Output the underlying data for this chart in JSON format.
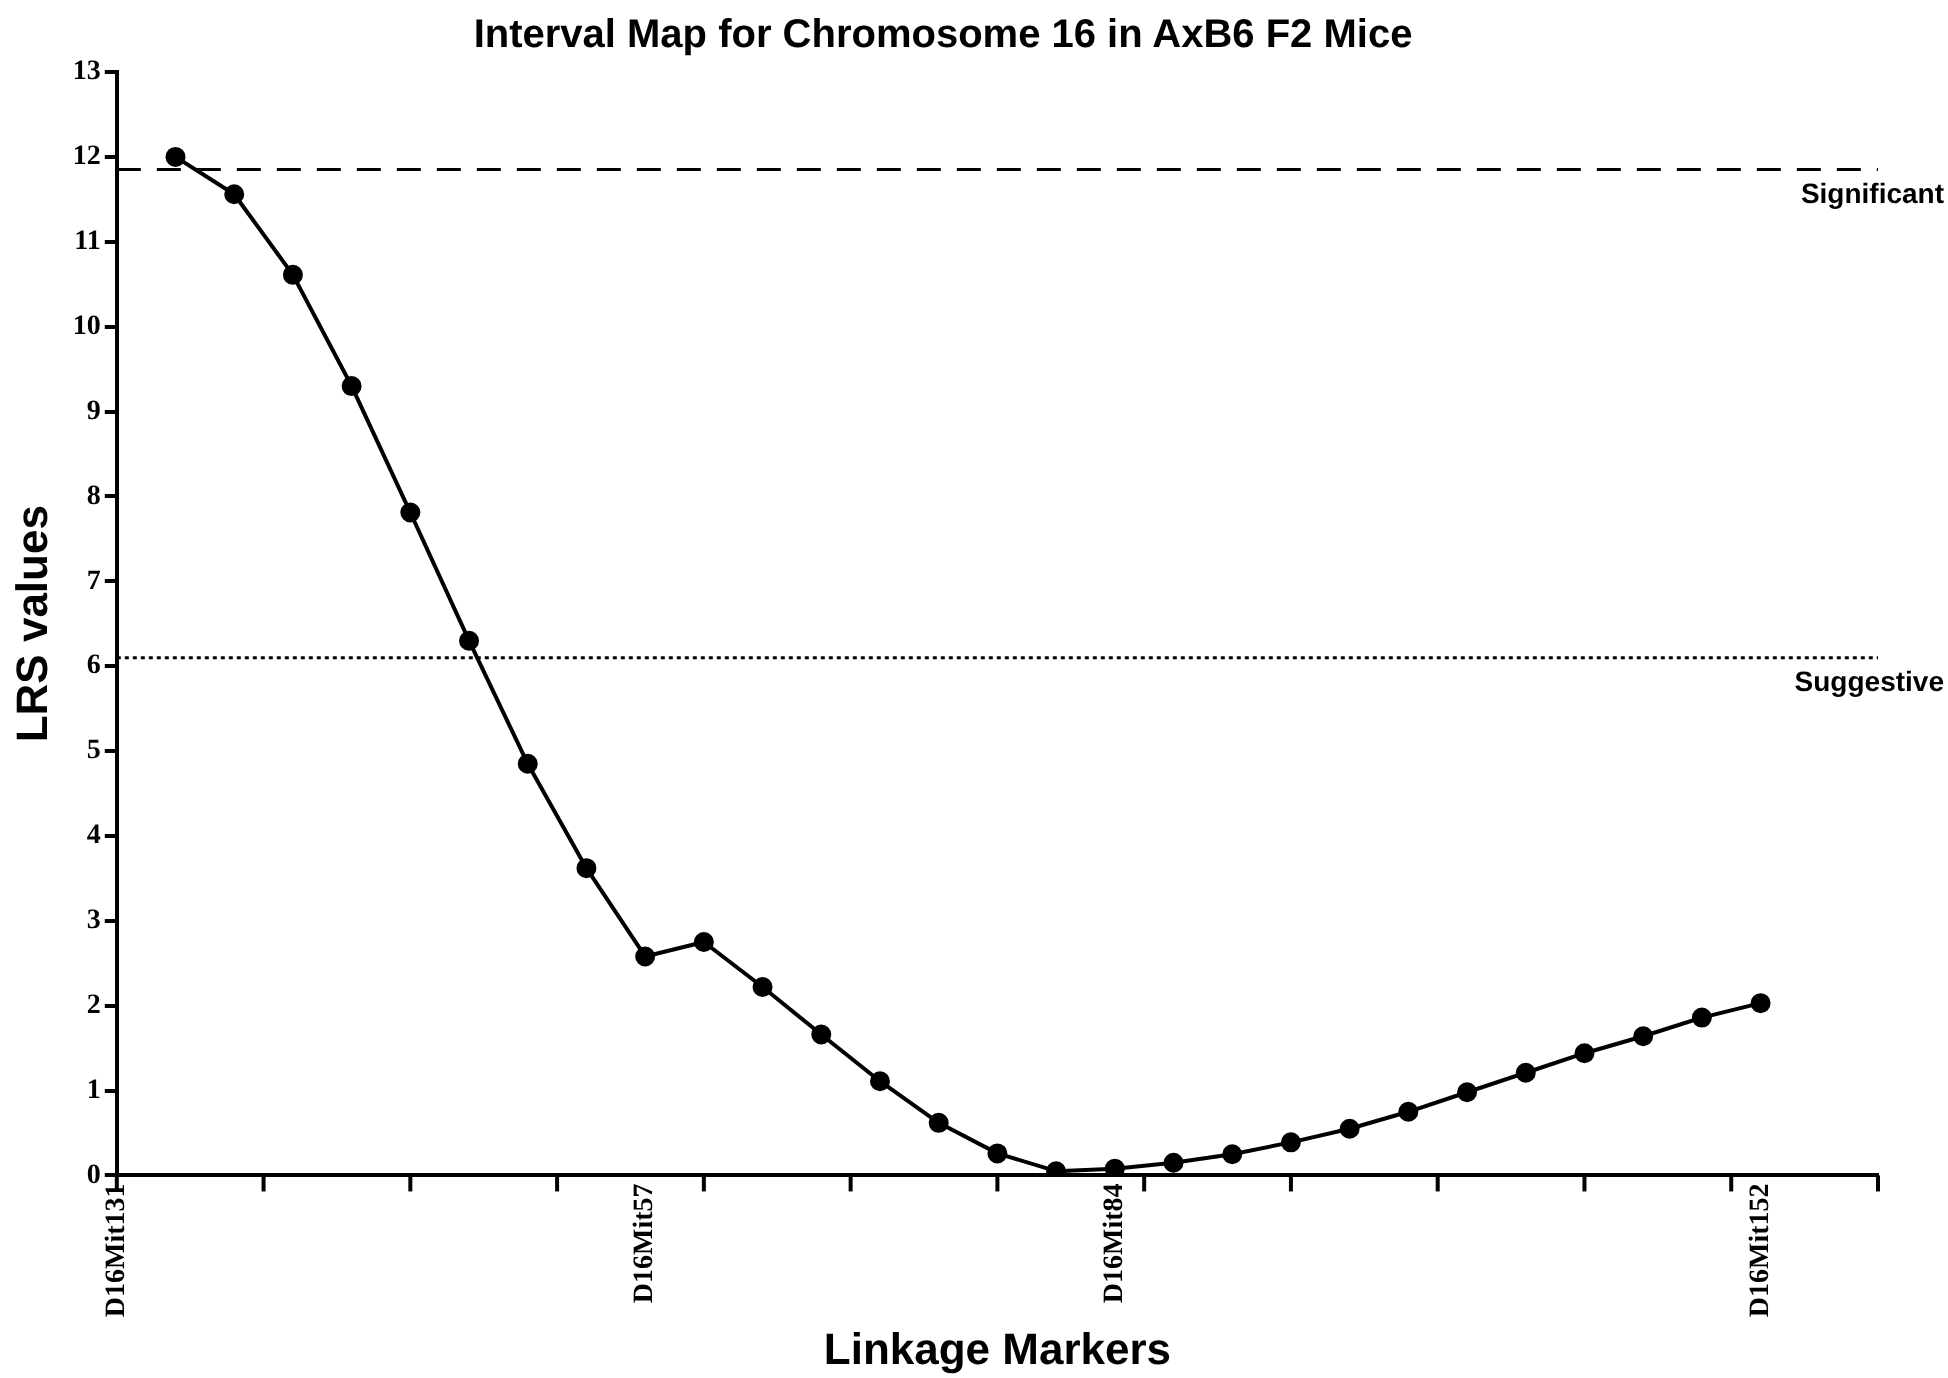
{
  "chart_data": {
    "type": "line",
    "title": "Interval Map for Chromosome 16 in AxB6 F2 Mice",
    "xlabel": "Linkage Markers",
    "ylabel": "LRS values",
    "categories": [
      "D16Mit131",
      null,
      null,
      null,
      null,
      null,
      null,
      null,
      null,
      "D16Mit57",
      null,
      null,
      null,
      null,
      null,
      null,
      null,
      "D16Mit84",
      null,
      null,
      null,
      null,
      null,
      null,
      null,
      null,
      null,
      null,
      "D16Mit152",
      null,
      null
    ],
    "series": [
      {
        "color": "#000000",
        "values": [
          null,
          12.0,
          11.56,
          10.61,
          9.3,
          7.81,
          6.3,
          4.85,
          3.62,
          2.58,
          2.75,
          2.22,
          1.66,
          1.11,
          0.62,
          0.26,
          0.05,
          0.08,
          0.15,
          0.25,
          0.39,
          0.55,
          0.75,
          0.98,
          1.21,
          1.44,
          1.64,
          1.86,
          2.03,
          null,
          null
        ]
      }
    ],
    "ylim": [
      0,
      13
    ],
    "yticks": [
      0,
      1,
      2,
      3,
      4,
      5,
      6,
      7,
      8,
      9,
      10,
      11,
      12,
      13
    ],
    "ref_lines": [
      {
        "axis": "y",
        "value": 11.85,
        "label": "Significant",
        "color": "#000000",
        "line_style": "dashed"
      },
      {
        "axis": "y",
        "value": 6.1,
        "label": "Suggestive",
        "color": "#000000",
        "line_style": "dotted"
      }
    ],
    "grid": false,
    "legend": false,
    "marker": "circle",
    "line_style": "solid"
  }
}
